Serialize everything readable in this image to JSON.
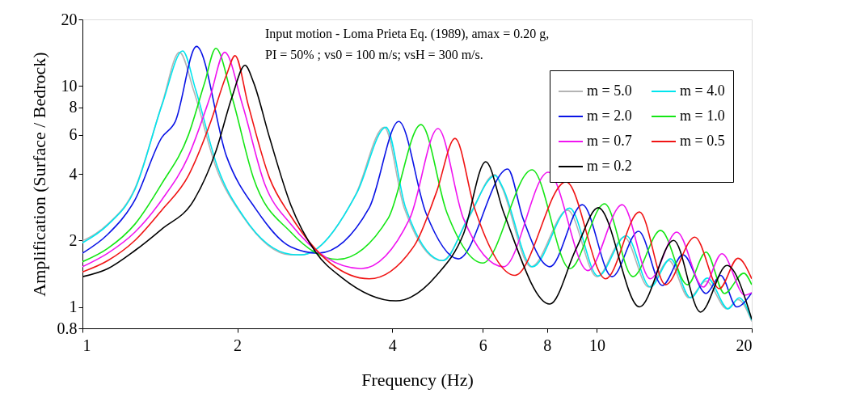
{
  "chart_data": {
    "type": "line",
    "xlabel": "Frequency (Hz)",
    "ylabel": "Amplification (Surface / Bedrock)",
    "annotations": [
      "Input motion - Loma Prieta Eq. (1989),  amax = 0.20 g,",
      "PI = 50% ;  vs0 = 100 m/s;  vsH = 300 m/s."
    ],
    "log": "xy",
    "xlim": [
      1,
      20
    ],
    "xticks": [
      1,
      2,
      4,
      6,
      8,
      10,
      20
    ],
    "ylim": [
      0.8,
      20
    ],
    "yticks": [
      0.8,
      1,
      2,
      4,
      6,
      8,
      10,
      20
    ],
    "grid": false,
    "legend": "top right",
    "line_style": "solid",
    "series": [
      {
        "name": "m = 5.0",
        "color": "#b4b4b4",
        "x": [
          1,
          1.12,
          1.265,
          1.426,
          1.544,
          1.648,
          1.817,
          2.047,
          2.54,
          2.66,
          3.4,
          3.86,
          4.22,
          5.0,
          5.63,
          6.33,
          6.52,
          7.45,
          8.77,
          10.0,
          11.3,
          12.6,
          13.8,
          15.1,
          16.3,
          17.9,
          18.8,
          20
        ],
        "values": [
          1.99,
          2.37,
          3.44,
          8.2,
          14.2,
          9.4,
          4.3,
          2.58,
          1.72,
          1.72,
          3.24,
          6.5,
          2.81,
          1.62,
          2.52,
          3.97,
          3.52,
          1.52,
          2.74,
          1.37,
          2.07,
          1.23,
          1.62,
          1.1,
          1.31,
          0.98,
          1.08,
          0.86
        ]
      },
      {
        "name": "m = 4.0",
        "color": "#00e5ee",
        "x": [
          1,
          1.12,
          1.265,
          1.43,
          1.566,
          1.66,
          1.83,
          2.06,
          2.54,
          2.66,
          3.42,
          3.89,
          4.25,
          5.02,
          5.63,
          6.35,
          6.55,
          7.5,
          8.85,
          10.05,
          11.4,
          12.7,
          13.9,
          15.2,
          16.4,
          18.0,
          18.9,
          20
        ],
        "values": [
          1.95,
          2.35,
          3.4,
          8.3,
          14.4,
          9.6,
          4.3,
          2.55,
          1.73,
          1.72,
          3.3,
          6.5,
          2.8,
          1.62,
          2.55,
          3.93,
          3.5,
          1.52,
          2.8,
          1.38,
          2.1,
          1.23,
          1.65,
          1.1,
          1.35,
          0.98,
          1.1,
          0.87
        ]
      },
      {
        "name": "m = 2.0",
        "color": "#0a14e6",
        "x": [
          1,
          1.12,
          1.265,
          1.426,
          1.515,
          1.666,
          1.905,
          2.18,
          2.54,
          2.87,
          3.61,
          4.12,
          4.65,
          5.38,
          6.71,
          7.18,
          8.1,
          9.37,
          10.7,
          12.05,
          13.4,
          14.7,
          16.3,
          17.4,
          18.7,
          20
        ],
        "values": [
          1.75,
          2.13,
          3.05,
          5.84,
          6.9,
          15.1,
          4.81,
          2.74,
          1.87,
          1.75,
          2.81,
          6.9,
          2.67,
          1.65,
          4.21,
          2.52,
          1.52,
          2.9,
          1.37,
          2.2,
          1.25,
          1.72,
          1.15,
          1.39,
          1.0,
          1.16
        ]
      },
      {
        "name": "m = 1.0",
        "color": "#14e614",
        "x": [
          1,
          1.12,
          1.265,
          1.426,
          1.607,
          1.727,
          1.817,
          1.953,
          2.15,
          2.54,
          3.13,
          3.93,
          4.55,
          5.11,
          6.0,
          7.48,
          8.86,
          10.35,
          11.75,
          13.3,
          15.0,
          16.3,
          17.7,
          19.3,
          20
        ],
        "values": [
          1.6,
          1.84,
          2.37,
          3.61,
          6.0,
          10.3,
          14.8,
          8.9,
          3.83,
          2.18,
          1.64,
          2.52,
          6.68,
          2.67,
          1.58,
          4.17,
          1.49,
          2.93,
          1.37,
          2.22,
          1.26,
          1.77,
          1.15,
          1.42,
          1.26
        ]
      },
      {
        "name": "m = 0.7",
        "color": "#f014f0",
        "x": [
          1,
          1.12,
          1.265,
          1.426,
          1.607,
          1.77,
          1.89,
          2.047,
          2.26,
          2.54,
          3.48,
          4.33,
          4.91,
          5.5,
          6.59,
          8.04,
          9.6,
          11.2,
          12.7,
          14.3,
          16.1,
          17.5,
          19.4,
          20
        ],
        "values": [
          1.52,
          1.75,
          2.18,
          3.05,
          4.81,
          8.9,
          14.2,
          8.2,
          3.61,
          2.37,
          1.49,
          2.52,
          6.41,
          2.52,
          1.52,
          4.07,
          1.46,
          2.9,
          1.34,
          2.18,
          1.23,
          1.74,
          1.13,
          1.16
        ]
      },
      {
        "name": "m = 0.5",
        "color": "#f01414",
        "x": [
          1,
          1.12,
          1.265,
          1.426,
          1.607,
          1.77,
          1.905,
          1.98,
          2.1,
          2.31,
          2.54,
          3.61,
          4.42,
          4.88,
          5.3,
          5.78,
          6.93,
          8.71,
          10.4,
          12.1,
          13.6,
          15.5,
          17.3,
          18.8,
          20
        ],
        "values": [
          1.44,
          1.62,
          2.0,
          2.74,
          3.93,
          6.74,
          11.2,
          13.7,
          8.2,
          3.83,
          2.58,
          1.34,
          1.9,
          3.32,
          5.79,
          2.81,
          1.39,
          3.68,
          1.34,
          2.69,
          1.26,
          2.07,
          1.21,
          1.66,
          1.34
        ]
      },
      {
        "name": "m = 0.2",
        "color": "#000000",
        "x": [
          1,
          1.12,
          1.265,
          1.426,
          1.648,
          1.817,
          1.953,
          2.07,
          2.15,
          2.31,
          2.54,
          2.84,
          3.19,
          4.07,
          4.88,
          5.5,
          6.08,
          6.59,
          8.1,
          9.12,
          10.06,
          12.1,
          14.1,
          15.9,
          17.9,
          20
        ],
        "values": [
          1.37,
          1.49,
          1.8,
          2.25,
          3.05,
          5.06,
          8.9,
          12.4,
          10.4,
          5.84,
          2.9,
          1.77,
          1.36,
          1.065,
          1.39,
          2.13,
          4.54,
          2.67,
          1.03,
          1.84,
          2.81,
          1.0,
          2.0,
          0.947,
          1.54,
          0.88
        ]
      }
    ]
  }
}
